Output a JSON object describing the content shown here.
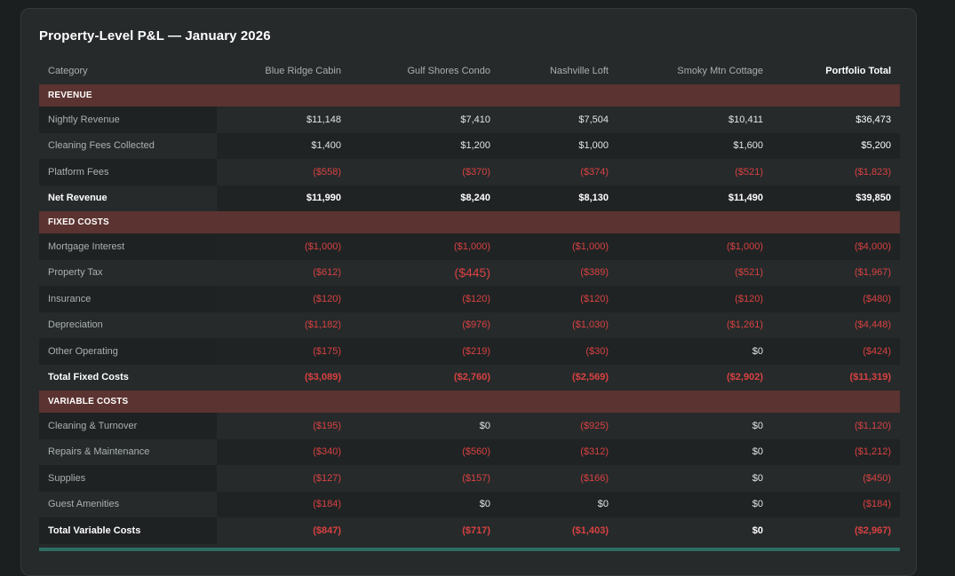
{
  "report": {
    "title": "Property-Level P&L — January 2026"
  },
  "columns": [
    "Category",
    "Blue Ridge Cabin",
    "Gulf Shores Condo",
    "Nashville Loft",
    "Smoky Mtn Cottage",
    "Portfolio Total"
  ],
  "sections": [
    {
      "label": "REVENUE",
      "rows": [
        {
          "label": "Nightly Revenue",
          "values": [
            "$11,148",
            "$7,410",
            "$7,504",
            "$10,411",
            "$36,473"
          ]
        },
        {
          "label": "Cleaning Fees Collected",
          "values": [
            "$1,400",
            "$1,200",
            "$1,000",
            "$1,600",
            "$5,200"
          ]
        },
        {
          "label": "Platform Fees",
          "values": [
            "($558)",
            "($370)",
            "($374)",
            "($521)",
            "($1,823)"
          ]
        },
        {
          "label": "Net Revenue",
          "bold": true,
          "values": [
            "$11,990",
            "$8,240",
            "$8,130",
            "$11,490",
            "$39,850"
          ]
        }
      ]
    },
    {
      "label": "FIXED COSTS",
      "rows": [
        {
          "label": "Mortgage Interest",
          "values": [
            "($1,000)",
            "($1,000)",
            "($1,000)",
            "($1,000)",
            "($4,000)"
          ]
        },
        {
          "label": "Property Tax",
          "values": [
            "($612)",
            "($445)",
            "($389)",
            "($521)",
            "($1,967)"
          ]
        },
        {
          "label": "Insurance",
          "values": [
            "($120)",
            "($120)",
            "($120)",
            "($120)",
            "($480)"
          ]
        },
        {
          "label": "Depreciation",
          "values": [
            "($1,182)",
            "($976)",
            "($1,030)",
            "($1,261)",
            "($4,448)"
          ]
        },
        {
          "label": "Other Operating",
          "values": [
            "($175)",
            "($219)",
            "($30)",
            "$0",
            "($424)"
          ]
        },
        {
          "label": "Total Fixed Costs",
          "bold": true,
          "values": [
            "($3,089)",
            "($2,760)",
            "($2,569)",
            "($2,902)",
            "($11,319)"
          ]
        }
      ]
    },
    {
      "label": "VARIABLE COSTS",
      "rows": [
        {
          "label": "Cleaning & Turnover",
          "values": [
            "($195)",
            "$0",
            "($925)",
            "$0",
            "($1,120)"
          ]
        },
        {
          "label": "Repairs & Maintenance",
          "values": [
            "($340)",
            "($560)",
            "($312)",
            "$0",
            "($1,212)"
          ]
        },
        {
          "label": "Supplies",
          "values": [
            "($127)",
            "($157)",
            "($166)",
            "$0",
            "($450)"
          ]
        },
        {
          "label": "Guest Amenities",
          "values": [
            "($184)",
            "$0",
            "$0",
            "$0",
            "($184)"
          ]
        },
        {
          "label": "Total Variable Costs",
          "bold": true,
          "values": [
            "($847)",
            "($717)",
            "($1,403)",
            "$0",
            "($2,967)"
          ]
        }
      ]
    }
  ],
  "colors": {
    "negative": "#d94141",
    "section_band": "#5b3330",
    "accent_bar": "#2e6e62"
  }
}
